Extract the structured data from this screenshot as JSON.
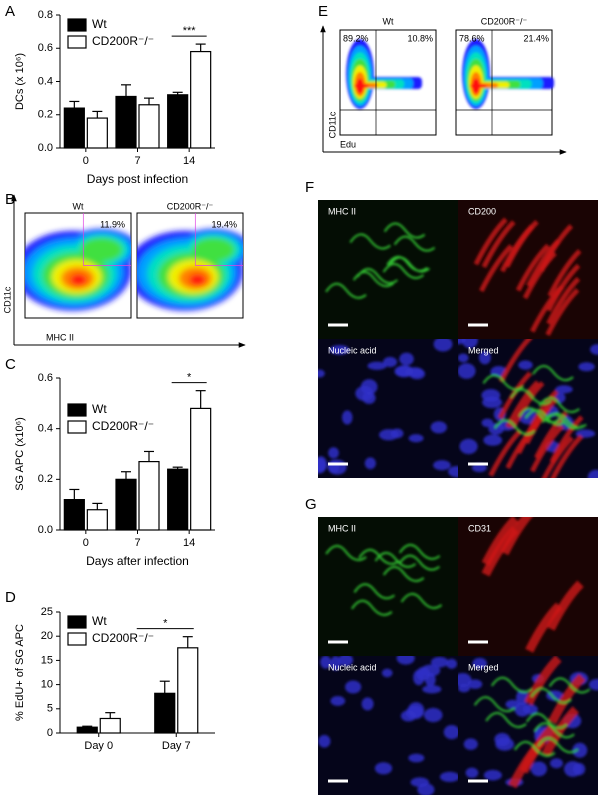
{
  "chart_data": [
    {
      "type": "bar",
      "label": "A",
      "y_label": "DCs (x 10⁶)",
      "x_label": "Days post infection",
      "categories": [
        "0",
        "7",
        "14"
      ],
      "series": [
        {
          "name": "Wt",
          "color": "#000000",
          "values": [
            0.24,
            0.31,
            0.32
          ],
          "errors": [
            0.04,
            0.07,
            0.015
          ]
        },
        {
          "name": "CD200R⁻/⁻",
          "color": "#ffffff",
          "values": [
            0.18,
            0.26,
            0.58
          ],
          "errors": [
            0.04,
            0.04,
            0.045
          ]
        }
      ],
      "ylim": [
        0,
        0.8
      ],
      "yticks": [
        {
          "value": 0,
          "label": "0.0"
        },
        0.2,
        0.4,
        0.6,
        0.8
      ],
      "annotation": "***",
      "legend": "upper left"
    },
    {
      "type": "bar",
      "label": "C",
      "y_label": "SG APC (x10⁶)",
      "x_label": "Days after infection",
      "categories": [
        "0",
        "7",
        "14"
      ],
      "series": [
        {
          "name": "Wt",
          "color": "#000000",
          "values": [
            0.12,
            0.2,
            0.24
          ],
          "errors": [
            0.04,
            0.03,
            0.008
          ]
        },
        {
          "name": "CD200R⁻/⁻",
          "color": "#ffffff",
          "values": [
            0.08,
            0.27,
            0.48
          ],
          "errors": [
            0.025,
            0.04,
            0.07
          ]
        }
      ],
      "ylim": [
        0,
        0.6
      ],
      "yticks": [
        {
          "value": 0,
          "label": "0.0"
        },
        0.2,
        0.4,
        0.6
      ],
      "annotation": "*",
      "legend": "upper left"
    },
    {
      "type": "bar",
      "label": "D",
      "y_label": "% EdU+ of SG APC",
      "categories": [
        "Day 0",
        "Day 7"
      ],
      "series": [
        {
          "name": "Wt",
          "color": "#000000",
          "values": [
            1.2,
            8.2
          ],
          "errors": [
            0.2,
            2.5
          ]
        },
        {
          "name": "CD200R⁻/⁻",
          "color": "#ffffff",
          "values": [
            3.0,
            17.6
          ],
          "errors": [
            1.2,
            2.3
          ]
        }
      ],
      "ylim": [
        0,
        25
      ],
      "yticks": [
        0,
        5,
        10,
        15,
        20,
        25
      ],
      "annotation": "*",
      "legend": "upper left"
    }
  ],
  "figure": {
    "B": {
      "label": "B",
      "y_label": "CD11c",
      "x_label": "MHC II",
      "plots": [
        {
          "name": "Wt",
          "gates": [
            "11.9%"
          ]
        },
        {
          "name": "CD200R⁻/⁻",
          "gates": [
            "19.4%"
          ]
        }
      ]
    },
    "E": {
      "label": "E",
      "y_label": "CD11c",
      "x_label": "Edu",
      "plots": [
        {
          "name": "Wt",
          "gates": [
            "89.2%",
            "10.8%"
          ]
        },
        {
          "name": "CD200R⁻/⁻",
          "gates": [
            "78.6%",
            "21.4%"
          ]
        }
      ]
    },
    "F": {
      "label": "F",
      "channels": [
        "MHC II",
        "CD200",
        "Nucleic acid",
        "Merged"
      ]
    },
    "G": {
      "label": "G",
      "channels": [
        "MHC II",
        "CD31",
        "Nucleic acid",
        "Merged"
      ]
    }
  }
}
